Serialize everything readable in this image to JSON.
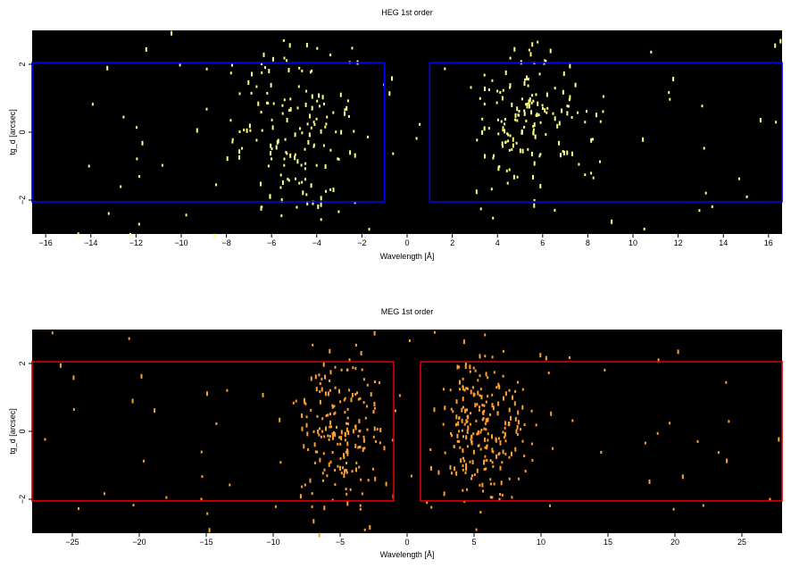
{
  "chart_data": [
    {
      "type": "scatter",
      "title": "HEG 1st order",
      "xlabel": "Wavelength [Å]",
      "ylabel": "tg_d [arcsec]",
      "xlim": [
        -16.6,
        16.6
      ],
      "ylim": [
        -3.0,
        3.0
      ],
      "xticks": [
        -16,
        -14,
        -12,
        -10,
        -8,
        -6,
        -4,
        -2,
        0,
        2,
        4,
        6,
        8,
        10,
        12,
        14,
        16
      ],
      "xtick_labels": [
        "−16",
        "−14",
        "−12",
        "−10",
        "−8",
        "−6",
        "−4",
        "−2",
        "0",
        "2",
        "4",
        "6",
        "8",
        "10",
        "12",
        "14",
        "16"
      ],
      "yticks": [
        -2,
        0,
        2
      ],
      "ytick_labels": [
        "−2",
        "0",
        "2"
      ],
      "background": "#000000",
      "event_color": "#ffff80",
      "grid": false,
      "regions": [
        {
          "x": [
            -16.6,
            -1.0
          ],
          "y": [
            -2.05,
            2.05
          ],
          "color": "#0000ff"
        },
        {
          "x": [
            1.0,
            16.6
          ],
          "y": [
            -2.05,
            2.05
          ],
          "color": "#0000ff"
        }
      ],
      "event_clusters": [
        {
          "center": [
            -5.0,
            0.1
          ],
          "sigma": [
            1.4,
            1.2
          ],
          "count": 150
        },
        {
          "center": [
            5.5,
            0.5
          ],
          "sigma": [
            1.2,
            1.1
          ],
          "count": 160
        },
        {
          "center": [
            0.0,
            0.0
          ],
          "spread": [
            16.5,
            3.0
          ],
          "count": 70
        }
      ],
      "seed": 7
    },
    {
      "type": "scatter",
      "title": "MEG 1st order",
      "xlabel": "Wavelength [Å]",
      "ylabel": "tg_d [arcsec]",
      "xlim": [
        -28.0,
        28.0
      ],
      "ylim": [
        -3.0,
        3.0
      ],
      "xticks": [
        -25,
        -20,
        -15,
        -10,
        -5,
        0,
        5,
        10,
        15,
        20,
        25
      ],
      "xtick_labels": [
        "−25",
        "−20",
        "−15",
        "−10",
        "−5",
        "0",
        "5",
        "10",
        "15",
        "20",
        "25"
      ],
      "yticks": [
        -2,
        0,
        2
      ],
      "ytick_labels": [
        "−2",
        "0",
        "2"
      ],
      "background": "#000000",
      "event_color": "#ffa030",
      "grid": false,
      "regions": [
        {
          "x": [
            -28.0,
            -1.0
          ],
          "y": [
            -2.05,
            2.05
          ],
          "color": "#dd0000"
        },
        {
          "x": [
            1.0,
            28.0
          ],
          "y": [
            -2.05,
            2.05
          ],
          "color": "#dd0000"
        }
      ],
      "event_clusters": [
        {
          "center": [
            -5.0,
            0.0
          ],
          "sigma": [
            1.8,
            1.1
          ],
          "count": 190
        },
        {
          "center": [
            5.5,
            0.1
          ],
          "sigma": [
            1.6,
            1.1
          ],
          "count": 230
        },
        {
          "center": [
            0.0,
            0.0
          ],
          "spread": [
            28.0,
            3.0
          ],
          "count": 80
        }
      ],
      "seed": 13
    }
  ]
}
